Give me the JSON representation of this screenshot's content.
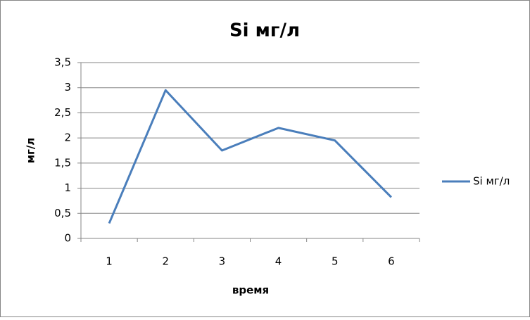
{
  "chart_data": {
    "type": "line",
    "title": "Si мг/л",
    "x_label": "время",
    "y_label": "мг/л",
    "categories": [
      "1",
      "2",
      "3",
      "4",
      "5",
      "6"
    ],
    "series": [
      {
        "name": "Si мг/л",
        "color": "#4a7ebb",
        "values": [
          0.3,
          2.95,
          1.75,
          2.2,
          1.95,
          0.82
        ]
      }
    ],
    "ylim": [
      0,
      3.5
    ],
    "yticks": [
      0,
      {
        "value": 0.5,
        "label": "0,5"
      },
      1,
      {
        "value": 1.5,
        "label": "1,5"
      },
      2,
      {
        "value": 2.5,
        "label": "2,5"
      },
      3,
      {
        "value": 3.5,
        "label": "3,5"
      }
    ],
    "grid": true,
    "legend": "right"
  }
}
